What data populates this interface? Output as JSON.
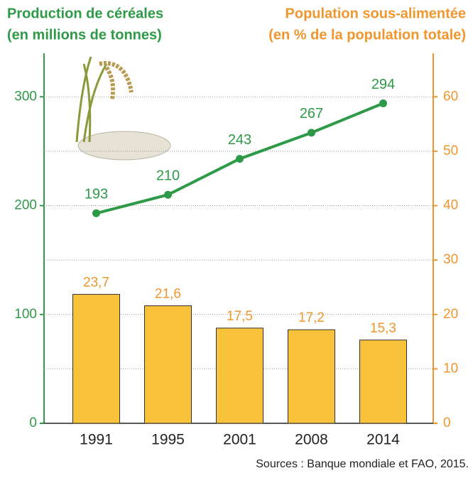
{
  "chart_data": {
    "type": "combo",
    "ylabel": [
      "Production de céréales",
      "(en millions de tonnes)"
    ],
    "y2label": [
      "Population sous-alimentée",
      "(en % de la population totale)"
    ],
    "source": "Sources : Banque mondiale et FAO, 2015.",
    "categories": [
      "1991",
      "1995",
      "2001",
      "2008",
      "2014"
    ],
    "ylim": [
      0,
      340
    ],
    "yticks": [
      0,
      100,
      200,
      300
    ],
    "y2lim": [
      0,
      68
    ],
    "y2ticks": [
      0,
      10,
      20,
      30,
      40,
      50,
      60
    ],
    "grid": true,
    "ycolor": "#2e9a48",
    "y2color": "#f0962e",
    "series": [
      {
        "type": "line",
        "axis": "y",
        "color": "#2e9a48",
        "values": [
          193,
          210,
          243,
          267,
          294
        ]
      },
      {
        "type": "bar",
        "axis": "y2",
        "color": "#f8c23a",
        "values": [
          23.7,
          21.6,
          17.5,
          17.2,
          15.3
        ],
        "value_labels": [
          "23,7",
          "21,6",
          "17,5",
          "17,2",
          "15,3"
        ]
      }
    ]
  }
}
